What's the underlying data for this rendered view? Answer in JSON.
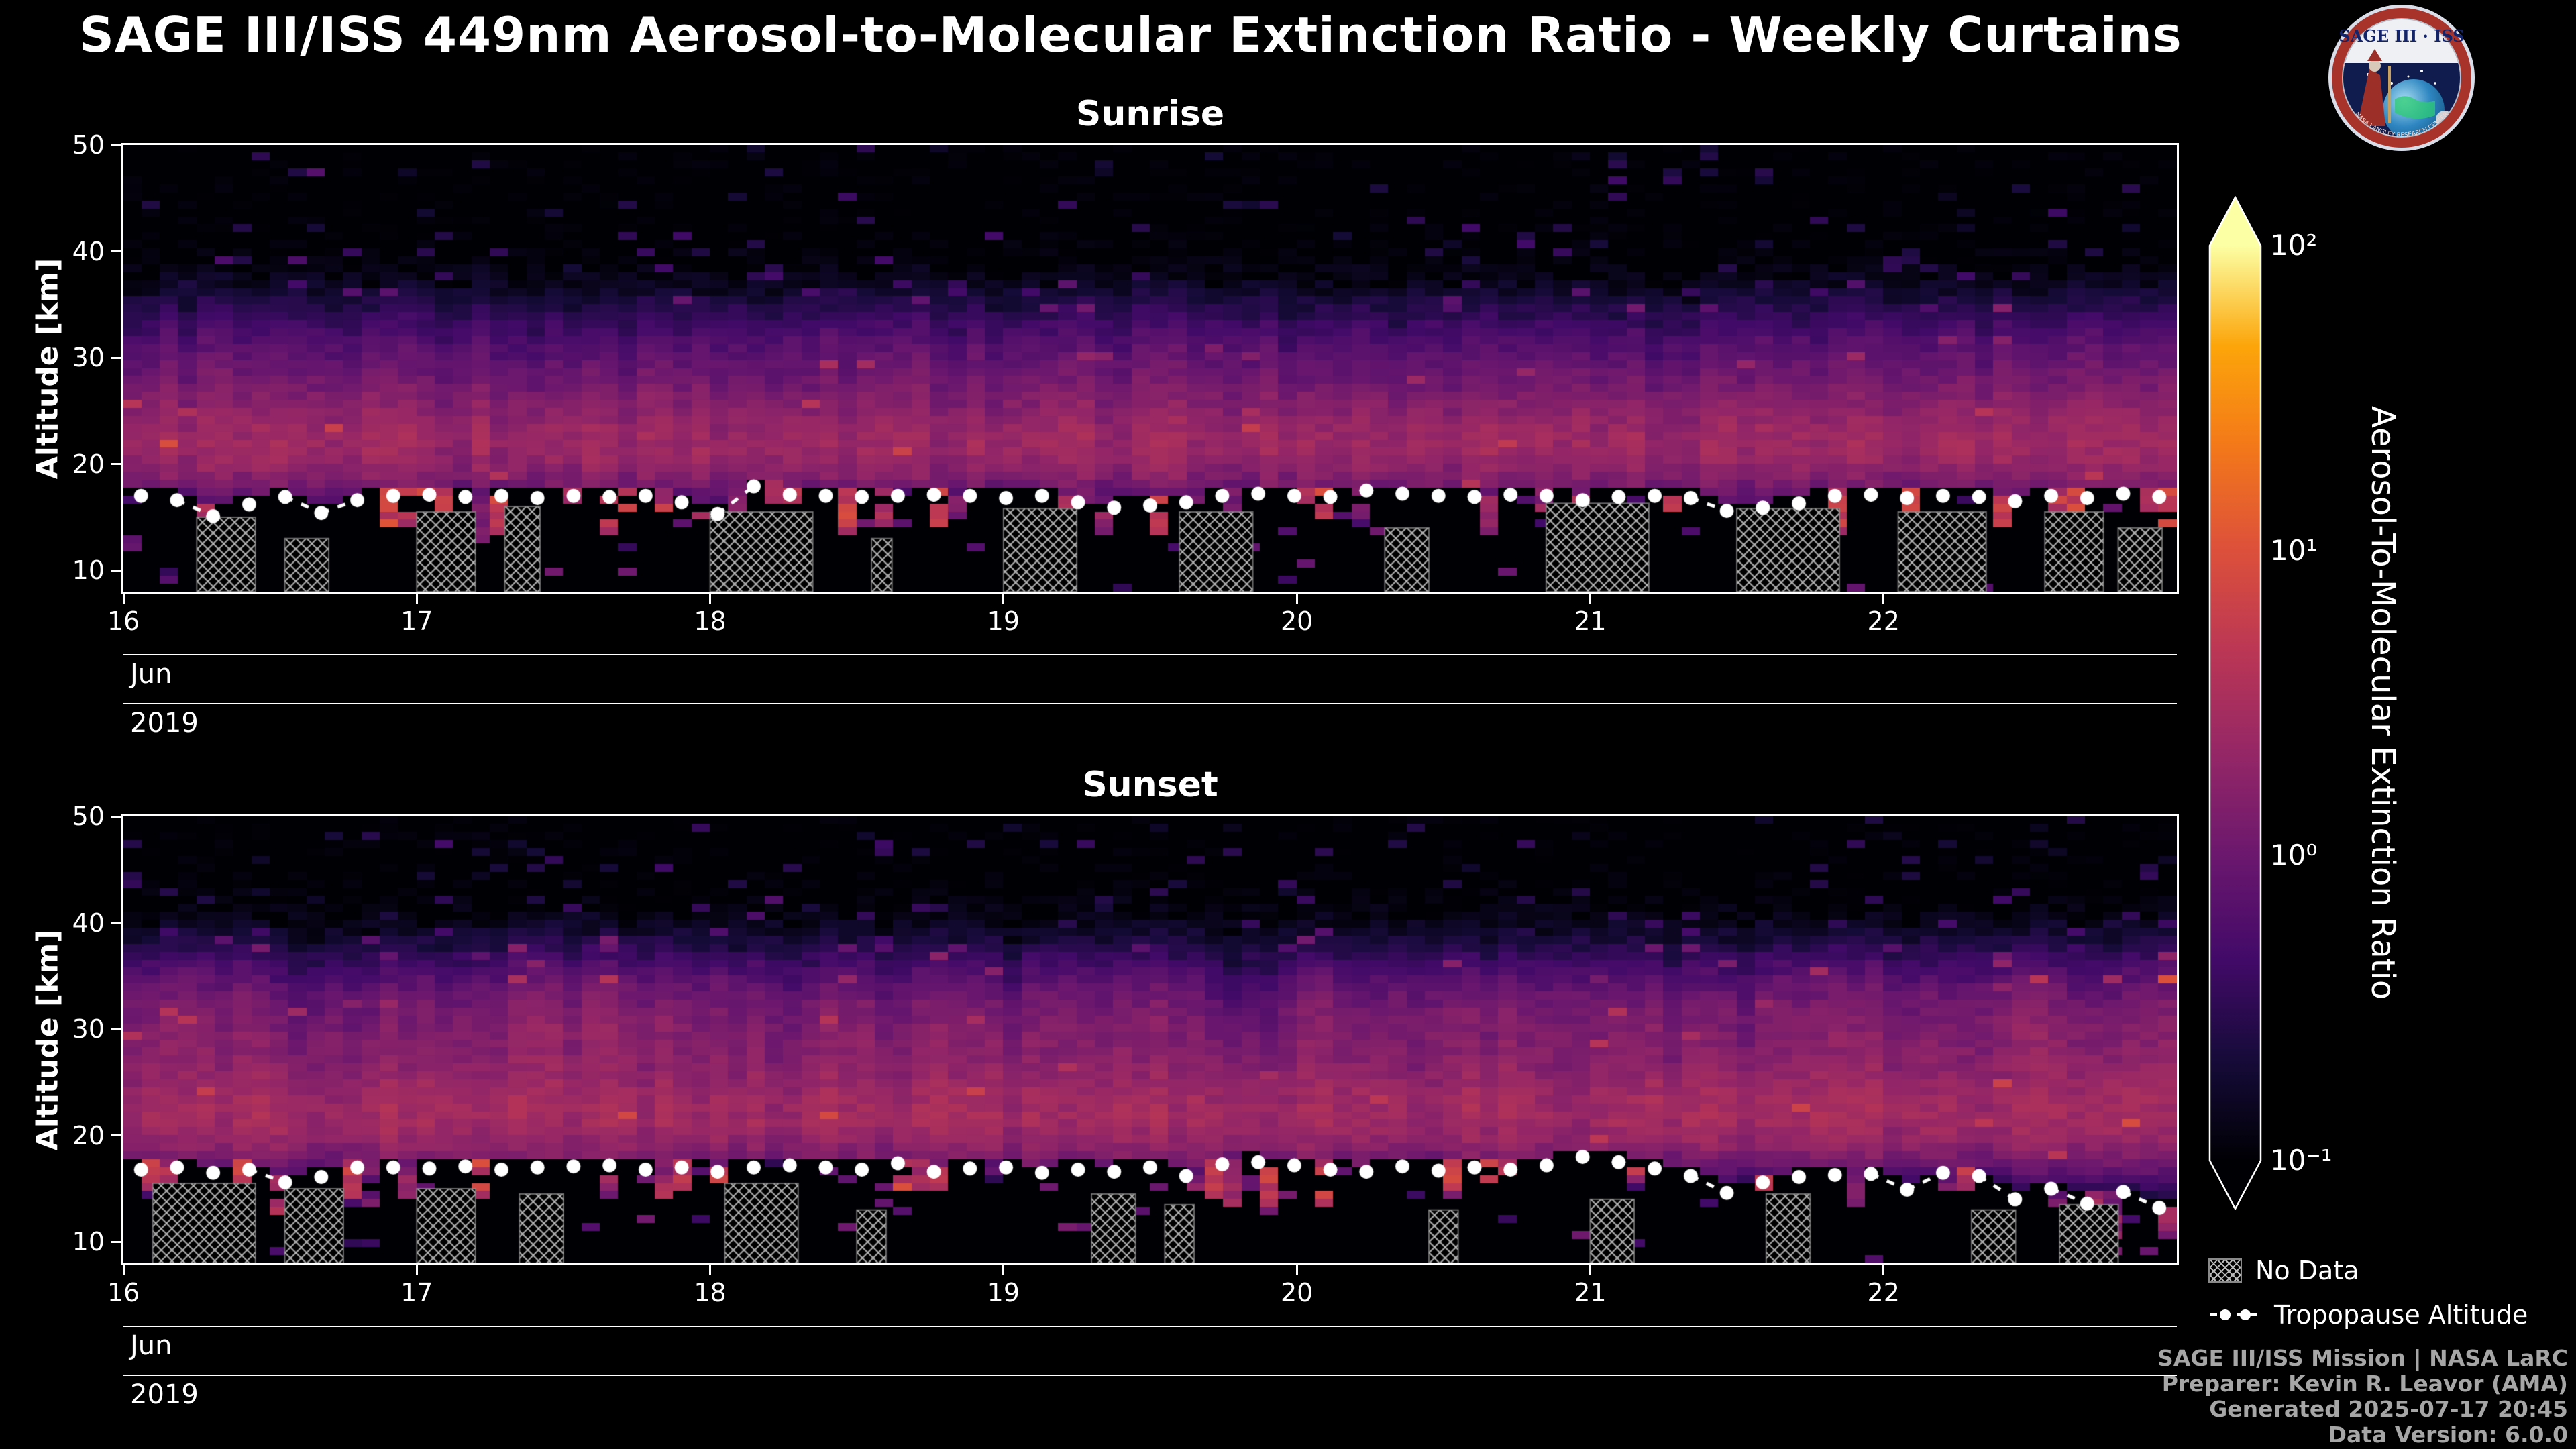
{
  "title": "SAGE III/ISS 449nm Aerosol-to-Molecular Extinction Ratio - Weekly Curtains",
  "logo": {
    "title": "SAGE III · ISS",
    "ring_text": "NASA LANGLEY RESEARCH CENTER"
  },
  "colorbar": {
    "label": "Aerosol-To-Molecular Extinction Ratio",
    "scale": "log",
    "ticks": [
      {
        "label": "10²",
        "value": 100,
        "frac": 1.0
      },
      {
        "label": "10¹",
        "value": 10,
        "frac": 0.6667
      },
      {
        "label": "10⁰",
        "value": 1,
        "frac": 0.3333
      },
      {
        "label": "10⁻¹",
        "value": 0.1,
        "frac": 0.0
      }
    ],
    "colormap_stops": [
      [
        0,
        "#000004"
      ],
      [
        0.11,
        "#160b39"
      ],
      [
        0.22,
        "#420a68"
      ],
      [
        0.33,
        "#6a176e"
      ],
      [
        0.44,
        "#932667"
      ],
      [
        0.56,
        "#bc3754"
      ],
      [
        0.67,
        "#dd513a"
      ],
      [
        0.78,
        "#f37819"
      ],
      [
        0.89,
        "#fca50a"
      ],
      [
        1,
        "#fcffa4"
      ]
    ]
  },
  "legend": {
    "no_data": "No Data",
    "tropopause": "Tropopause Altitude"
  },
  "credits": [
    "SAGE III/ISS Mission | NASA LaRC",
    "Preparer: Kevin R. Leavor (AMA)",
    "Generated 2025-07-17 20:45",
    "Data Version: 6.0.0"
  ],
  "chart_data": [
    {
      "type": "heatmap",
      "title": "Sunrise",
      "ylabel": "Altitude [km]",
      "month_label": "Jun",
      "year_label": "2019",
      "x_range": [
        16,
        23
      ],
      "x_ticks": [
        16,
        17,
        18,
        19,
        20,
        21,
        22
      ],
      "y_range": [
        8,
        50
      ],
      "y_ticks": [
        10,
        20,
        30,
        40,
        50
      ],
      "value_log10_range": [
        -1,
        2
      ],
      "grid": {
        "cols": 112,
        "row_km": 0.75
      },
      "background_ratio": 0.08,
      "band": {
        "layer1": {
          "center": 21.5,
          "sigma": 3.0,
          "amp": 2.0
        },
        "layer2": {
          "center": 26.5,
          "sigma": 4.5,
          "amp": 0.75
        },
        "plume": {
          "center": 30.0,
          "sigma": 3.5,
          "amp": 0.3
        }
      },
      "seed": 20190616,
      "tropopause_x_start": 16.06,
      "tropopause_x_end": 22.94,
      "tropopause_km": [
        17.0,
        16.6,
        15.1,
        16.2,
        16.9,
        15.4,
        16.6,
        17.0,
        17.1,
        16.9,
        17.0,
        16.8,
        17.0,
        16.9,
        17.0,
        16.4,
        15.3,
        17.9,
        17.1,
        17.0,
        16.9,
        17.0,
        17.1,
        17.0,
        16.8,
        17.0,
        16.4,
        15.9,
        16.1,
        16.4,
        17.0,
        17.2,
        17.0,
        16.9,
        17.5,
        17.2,
        17.0,
        16.9,
        17.1,
        17.0,
        16.6,
        16.9,
        17.0,
        16.8,
        15.6,
        15.9,
        16.3,
        17.0,
        17.1,
        16.8,
        17.0,
        16.9,
        16.5,
        17.0,
        16.8,
        17.2,
        16.9
      ],
      "no_data_spans": [
        [
          16.25,
          16.45,
          15.0
        ],
        [
          16.55,
          16.7,
          13.0
        ],
        [
          17.0,
          17.2,
          15.5
        ],
        [
          17.3,
          17.42,
          16.0
        ],
        [
          18.0,
          18.35,
          15.5
        ],
        [
          18.55,
          18.62,
          13.0
        ],
        [
          19.0,
          19.25,
          15.8
        ],
        [
          19.6,
          19.85,
          15.5
        ],
        [
          20.3,
          20.45,
          14.0
        ],
        [
          20.85,
          21.2,
          16.3
        ],
        [
          21.5,
          21.85,
          15.8
        ],
        [
          22.05,
          22.35,
          15.5
        ],
        [
          22.55,
          22.75,
          15.5
        ],
        [
          22.8,
          22.95,
          14.0
        ]
      ]
    },
    {
      "type": "heatmap",
      "title": "Sunset",
      "ylabel": "Altitude [km]",
      "month_label": "Jun",
      "year_label": "2019",
      "x_range": [
        16,
        23
      ],
      "x_ticks": [
        16,
        17,
        18,
        19,
        20,
        21,
        22
      ],
      "y_range": [
        8,
        50
      ],
      "y_ticks": [
        10,
        20,
        30,
        40,
        50
      ],
      "value_log10_range": [
        -1,
        2
      ],
      "grid": {
        "cols": 112,
        "row_km": 0.75
      },
      "background_ratio": 0.08,
      "band": {
        "layer1": {
          "center": 21.5,
          "sigma": 3.0,
          "amp": 2.2
        },
        "layer2": {
          "center": 27.5,
          "sigma": 5.0,
          "amp": 0.95
        },
        "plume": {
          "center": 30.5,
          "sigma": 3.8,
          "amp": 1.1
        }
      },
      "seed": 20190617,
      "tropopause_x_start": 16.06,
      "tropopause_x_end": 22.94,
      "tropopause_km": [
        16.8,
        17.0,
        16.5,
        16.8,
        15.6,
        16.1,
        17.0,
        17.0,
        16.9,
        17.1,
        16.8,
        17.0,
        17.1,
        17.2,
        16.8,
        17.0,
        16.6,
        17.0,
        17.2,
        17.0,
        16.8,
        17.4,
        16.6,
        16.9,
        17.0,
        16.5,
        16.8,
        16.6,
        17.0,
        16.2,
        17.3,
        17.5,
        17.2,
        16.8,
        16.6,
        17.1,
        16.7,
        17.0,
        16.8,
        17.2,
        18.0,
        17.5,
        16.9,
        16.2,
        14.6,
        15.6,
        16.1,
        16.3,
        16.4,
        14.9,
        16.5,
        16.2,
        14.0,
        15.0,
        13.6,
        14.7,
        13.2
      ],
      "no_data_spans": [
        [
          16.1,
          16.45,
          15.5
        ],
        [
          16.55,
          16.75,
          15.0
        ],
        [
          17.0,
          17.2,
          15.0
        ],
        [
          17.35,
          17.5,
          14.5
        ],
        [
          18.05,
          18.3,
          15.5
        ],
        [
          18.5,
          18.6,
          13.0
        ],
        [
          19.3,
          19.45,
          14.5
        ],
        [
          19.55,
          19.65,
          13.5
        ],
        [
          20.45,
          20.55,
          13.0
        ],
        [
          21.0,
          21.15,
          14.0
        ],
        [
          21.6,
          21.75,
          14.5
        ],
        [
          22.3,
          22.45,
          13.0
        ],
        [
          22.6,
          22.8,
          13.5
        ]
      ]
    }
  ]
}
